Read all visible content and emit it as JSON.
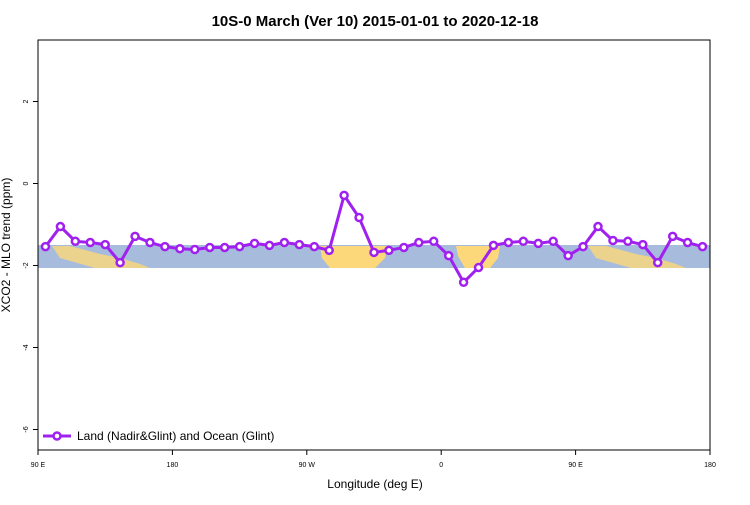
{
  "chart_data": {
    "type": "line",
    "title": "10S-0 March (Ver 10)   2015-01-01 to 2020-12-18",
    "xlabel": "Longitude (deg E)",
    "ylabel": "XCO2 - MLO trend (ppm)",
    "x": [
      95,
      105,
      115,
      125,
      135,
      145,
      155,
      165,
      175,
      185,
      195,
      205,
      215,
      225,
      235,
      245,
      255,
      265,
      275,
      285,
      295,
      305,
      315,
      325,
      335,
      345,
      355,
      365,
      375,
      385,
      395,
      405,
      415,
      425,
      435,
      445,
      455,
      465,
      475,
      485,
      495,
      505,
      515,
      525,
      535
    ],
    "series": [
      {
        "name": "Land (Nadir&Glint) and Ocean (Glint)",
        "color": "#a020f0",
        "values": [
          -1.54,
          -1.05,
          -1.41,
          -1.44,
          -1.49,
          -1.93,
          -1.29,
          -1.44,
          -1.54,
          -1.59,
          -1.61,
          -1.56,
          -1.56,
          -1.54,
          -1.46,
          -1.51,
          -1.44,
          -1.49,
          -1.54,
          -1.63,
          -0.29,
          -0.83,
          -1.68,
          -1.63,
          -1.56,
          -1.44,
          -1.41,
          -1.76,
          -2.41,
          -2.05,
          -1.51,
          -1.44,
          -1.41,
          -1.46,
          -1.41,
          -1.76,
          -1.54,
          -1.05,
          -1.39,
          -1.41,
          -1.49,
          -1.93,
          -1.29,
          -1.44,
          -1.54
        ]
      }
    ],
    "xlim": [
      90,
      540
    ],
    "xticks": [
      {
        "value": 90,
        "label": "90 E"
      },
      180,
      {
        "value": 270,
        "label": "90 W"
      },
      {
        "value": 360,
        "label": "0"
      },
      {
        "value": 450,
        "label": "90 E"
      },
      {
        "value": 540,
        "label": "180"
      }
    ],
    "ylim": [
      -6.5,
      3.5
    ],
    "yticks": [
      -6,
      -4,
      -2,
      0,
      2
    ],
    "legend": "lower left"
  }
}
